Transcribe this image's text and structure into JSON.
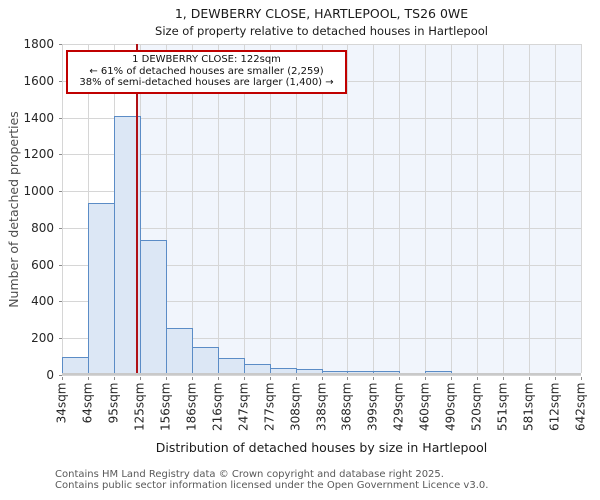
{
  "title": "1, DEWBERRY CLOSE, HARTLEPOOL, TS26 0WE",
  "subtitle": "Size of property relative to detached houses in Hartlepool",
  "annotation": {
    "line1": "1 DEWBERRY CLOSE: 122sqm",
    "line2": "← 61% of detached houses are smaller (2,259)",
    "line3": "38% of semi-detached houses are larger (1,400) →"
  },
  "footer": {
    "line1": "Contains HM Land Registry data © Crown copyright and database right 2025.",
    "line2": "Contains public sector information licensed under the Open Government Licence v3.0."
  },
  "chart_data": {
    "type": "bar",
    "title": "1, DEWBERRY CLOSE, HARTLEPOOL, TS26 0WE",
    "subtitle": "Size of property relative to detached houses in Hartlepool",
    "xlabel": "Distribution of detached houses by size in Hartlepool",
    "ylabel": "Number of detached properties",
    "bin_labels": [
      "34sqm",
      "64sqm",
      "95sqm",
      "125sqm",
      "156sqm",
      "186sqm",
      "216sqm",
      "247sqm",
      "277sqm",
      "308sqm",
      "338sqm",
      "368sqm",
      "399sqm",
      "429sqm",
      "460sqm",
      "490sqm",
      "520sqm",
      "551sqm",
      "581sqm",
      "612sqm",
      "642sqm"
    ],
    "bin_edges_sqm": [
      34,
      64,
      95,
      125,
      156,
      186,
      216,
      247,
      277,
      308,
      338,
      368,
      399,
      429,
      460,
      490,
      520,
      551,
      581,
      612,
      642
    ],
    "values": [
      85,
      925,
      1400,
      725,
      245,
      140,
      80,
      50,
      25,
      20,
      10,
      5,
      5,
      0,
      5,
      0,
      0,
      0,
      0,
      0
    ],
    "ylim": [
      0,
      1800
    ],
    "ytick_step": 200,
    "grid": true,
    "legend": "none",
    "marker": {
      "value_sqm": 122,
      "bin_index": 2,
      "bin_start_sqm": 95,
      "bin_end_sqm": 125
    },
    "shaded_region": "right_of_marker_to_plot_end"
  },
  "colors": {
    "bar_fill": "#dce7f5",
    "bar_border": "#5b8cc6",
    "marker_line": "#b01116",
    "annotation_border": "#c00000",
    "shaded_region": "#f1f5fc",
    "grid": "#d6d6d6",
    "axis_spine": "#c9c9c9",
    "tick_text": "#262626",
    "title_text": "#1a1a1a",
    "footer_text": "#595959"
  }
}
